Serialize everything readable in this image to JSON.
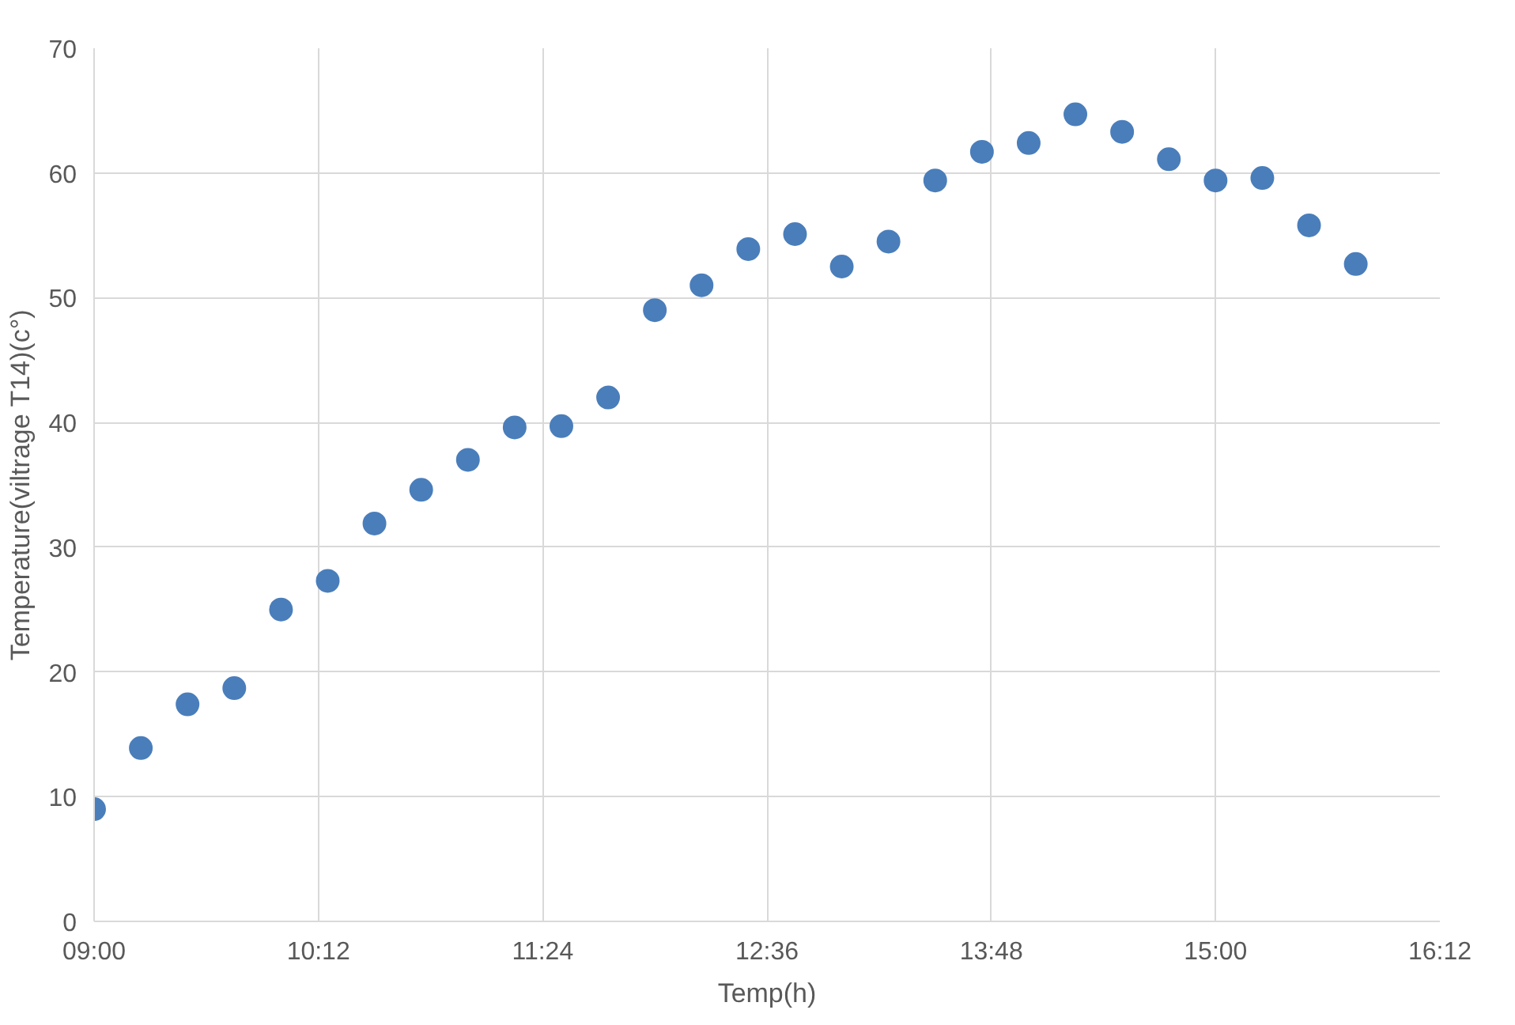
{
  "chart_data": {
    "type": "scatter",
    "xlabel": "Temp(h)",
    "ylabel": "Temperature(viltrage T14)(c°)",
    "x": [
      9.0,
      9.25,
      9.5,
      9.75,
      10.0,
      10.25,
      10.5,
      10.75,
      11.0,
      11.25,
      11.5,
      11.75,
      12.0,
      12.25,
      12.5,
      12.75,
      13.0,
      13.25,
      13.5,
      13.75,
      14.0,
      14.25,
      14.5,
      14.75,
      15.0,
      15.25,
      15.5,
      15.75
    ],
    "series": [
      {
        "color": "#4a7ebb",
        "values": [
          9.0,
          13.9,
          17.4,
          18.7,
          25.0,
          27.3,
          31.9,
          34.6,
          37.0,
          39.6,
          39.7,
          42.0,
          49.0,
          51.0,
          53.9,
          55.1,
          52.5,
          54.5,
          59.4,
          61.7,
          62.4,
          64.7,
          63.3,
          61.1,
          59.4,
          59.6,
          55.8,
          52.7
        ]
      }
    ],
    "xlim": [
      9,
      16.2
    ],
    "xticks": [
      {
        "value": 9,
        "label": "09:00"
      },
      {
        "value": 10.2,
        "label": "10:12"
      },
      {
        "value": 11.4,
        "label": "11:24"
      },
      {
        "value": 12.6,
        "label": "12:36"
      },
      {
        "value": 13.8,
        "label": "13:48"
      },
      {
        "value": 15,
        "label": "15:00"
      },
      {
        "value": 16.2,
        "label": "16:12"
      }
    ],
    "ylim": [
      0,
      70
    ],
    "yticks": [
      0,
      10,
      20,
      30,
      40,
      50,
      60,
      70
    ],
    "grid": true,
    "marker": "circle"
  }
}
